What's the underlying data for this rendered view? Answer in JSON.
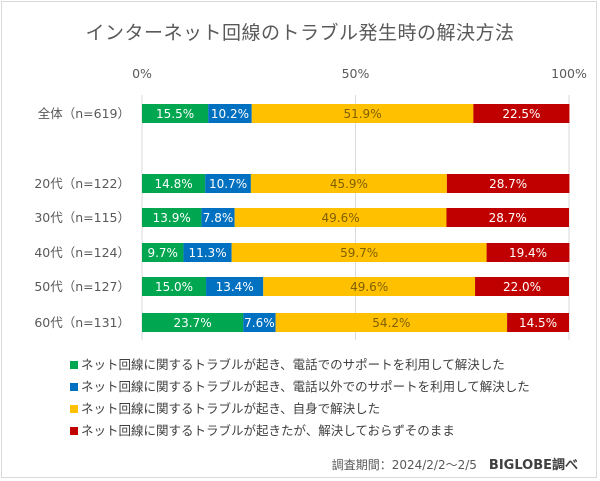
{
  "chart_data": {
    "type": "bar",
    "orientation": "horizontal",
    "stacked": "percent",
    "title": "インターネット回線のトラブル発生時の解決方法",
    "xlabel": "",
    "ylabel": "",
    "xlim": [
      0,
      100
    ],
    "x_ticks": [
      "0%",
      "50%",
      "100%"
    ],
    "x_tick_values": [
      0,
      50,
      100
    ],
    "grid": true,
    "legend_position": "bottom",
    "categories": [
      "全体（n=619）",
      "20代（n=122）",
      "30代（n=115）",
      "40代（n=124）",
      "50代（n=127）",
      "60代（n=131）"
    ],
    "series": [
      {
        "name": "ネット回線に関するトラブルが起き、電話でのサポートを利用して解決した",
        "color": "#00a650",
        "label_color": "#ffffff",
        "values": [
          15.5,
          14.8,
          13.9,
          9.7,
          15.0,
          23.7
        ]
      },
      {
        "name": "ネット回線に関するトラブルが起き、電話以外でのサポートを利用して解決した",
        "color": "#0070c0",
        "label_color": "#ffffff",
        "values": [
          10.2,
          10.7,
          7.8,
          11.3,
          13.4,
          7.6
        ]
      },
      {
        "name": "ネット回線に関するトラブルが起き、自身で解決した",
        "color": "#ffc000",
        "label_color": "#7f6000",
        "values": [
          51.9,
          45.9,
          49.6,
          59.7,
          49.6,
          54.2
        ]
      },
      {
        "name": "ネット回線に関するトラブルが起きたが、解決しておらずそのまま",
        "color": "#c00000",
        "label_color": "#ffffff",
        "values": [
          22.5,
          28.7,
          28.7,
          19.4,
          22.0,
          14.5
        ]
      }
    ],
    "data_labels": [
      [
        "15.5%",
        "10.2%",
        "51.9%",
        "22.5%"
      ],
      [
        "14.8%",
        "10.7%",
        "45.9%",
        "28.7%"
      ],
      [
        "13.9%",
        "7.8%",
        "49.6%",
        "28.7%"
      ],
      [
        "9.7%",
        "11.3%",
        "59.7%",
        "19.4%"
      ],
      [
        "15.0%",
        "13.4%",
        "49.6%",
        "22.0%"
      ],
      [
        "23.7%",
        "7.6%",
        "54.2%",
        "14.5%"
      ]
    ],
    "source_note": "調査期間：2024/2/2～2/5",
    "credit": "BIGLOBE調べ"
  }
}
